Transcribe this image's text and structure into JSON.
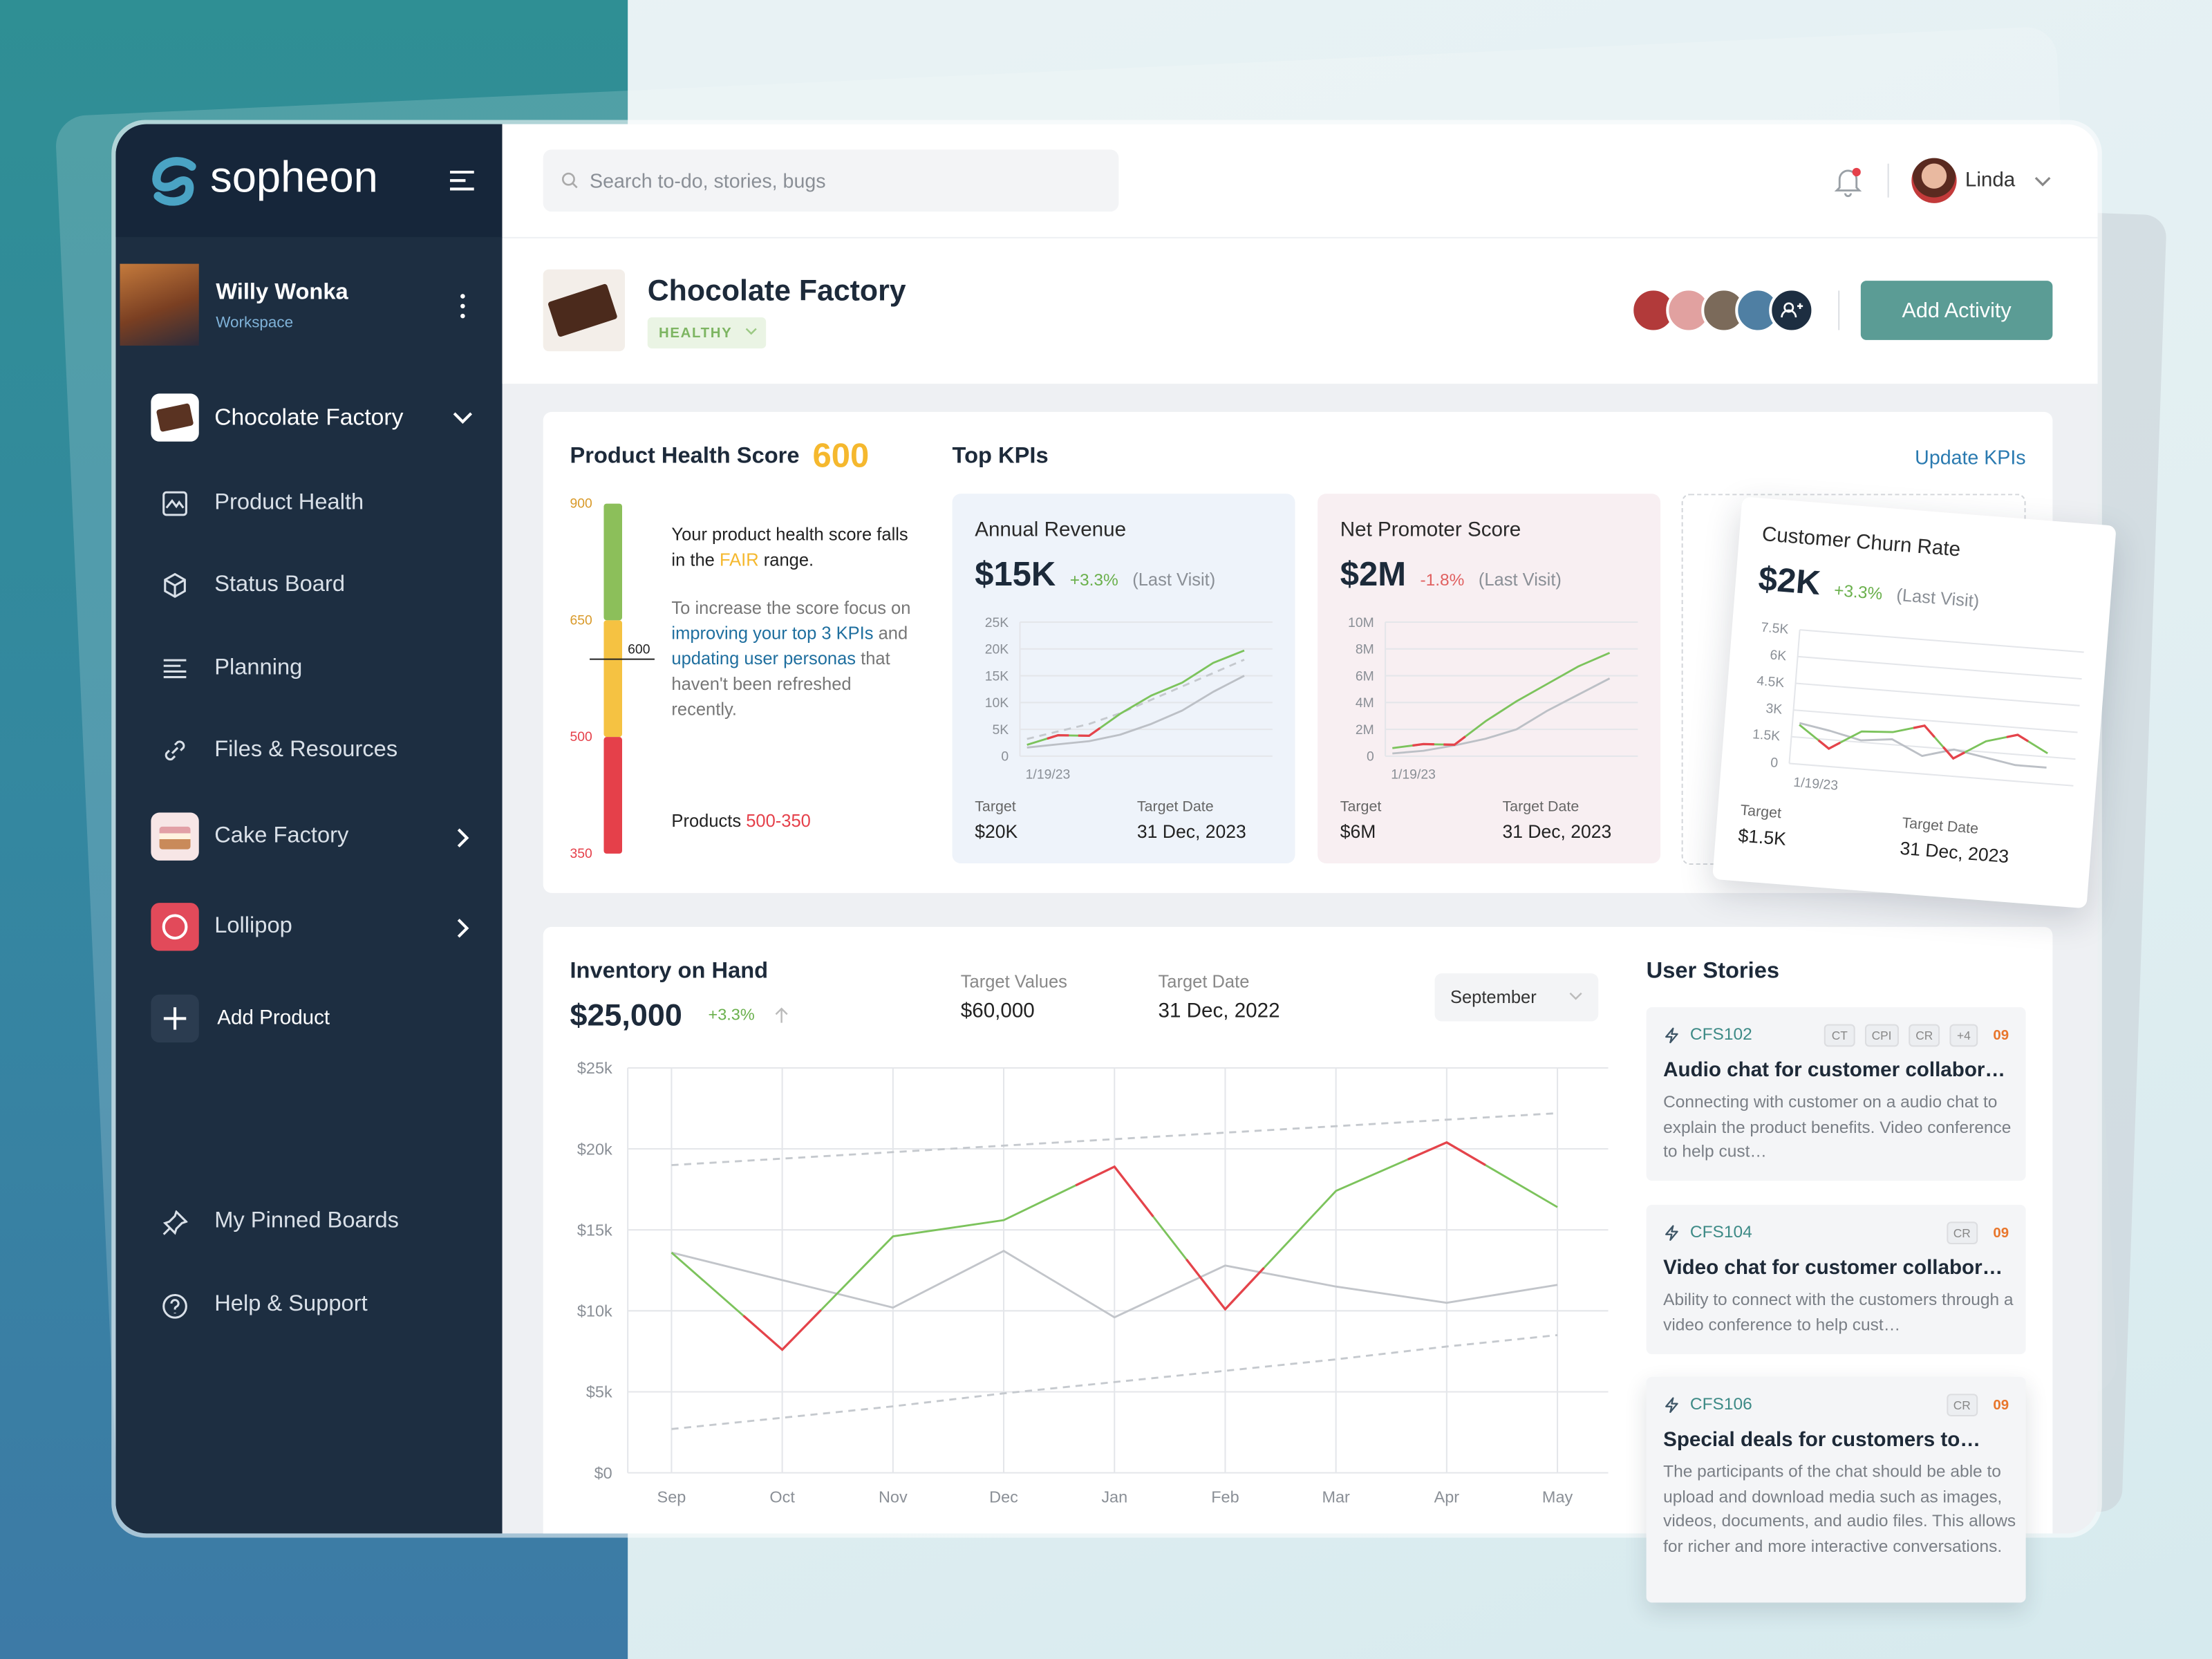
{
  "brand": "sopheon",
  "sidebar": {
    "user": {
      "name": "Willy Wonka",
      "role": "Workspace"
    },
    "current_product": "Chocolate Factory",
    "menu": [
      "Product Health",
      "Status Board",
      "Planning",
      "Files & Resources"
    ],
    "other_products": [
      "Cake Factory",
      "Lollipop"
    ],
    "add_product": "Add Product",
    "footer": [
      "My Pinned Boards",
      "Help & Support"
    ]
  },
  "topbar": {
    "search_placeholder": "Search to-do, stories, bugs",
    "user": "Linda"
  },
  "header": {
    "title": "Chocolate Factory",
    "status": "HEALTHY",
    "action": "Add Activity"
  },
  "health": {
    "title": "Product Health Score",
    "score": 600,
    "ticks": [
      900,
      650,
      500,
      350
    ],
    "colors": [
      "#8cbf5a",
      "#f5c242",
      "#e5404a"
    ],
    "summary": [
      "Your product health score falls in the ",
      "FAIR",
      " range."
    ],
    "advice": [
      "To increase the score focus on ",
      "improving your top 3 KPIs",
      " and ",
      "updating user personas",
      " that haven't been refreshed recently."
    ],
    "products": [
      "Products ",
      "500-350"
    ]
  },
  "kpis": {
    "title": "Top KPIs",
    "action": "Update KPIs",
    "cards": [
      {
        "title": "Annual Revenue",
        "value": "$15K",
        "change": "+3.3%",
        "change_color": "#6ab04c",
        "note": "(Last Visit)",
        "target_label": "Target",
        "target": "$20K",
        "date_label": "Target Date",
        "date": "31 Dec, 2023",
        "chart": {
          "type": "line",
          "categories": [
            "1/19/23",
            null,
            null,
            null,
            null,
            null,
            null,
            null
          ],
          "ylim": [
            0,
            25000
          ],
          "yticks": [
            0,
            {
              "value": 5000,
              "label": "5K"
            },
            {
              "value": 10000,
              "label": "10K"
            },
            {
              "value": 15000,
              "label": "15K"
            },
            {
              "value": 20000,
              "label": "20K"
            },
            {
              "value": 25000,
              "label": "25K"
            }
          ],
          "series": [
            {
              "color": "#7cc35c",
              "turn_color": "#e5434b",
              "values": [
                2100,
                3900,
                3800,
                7900,
                11300,
                13700,
                17400,
                19700
              ]
            },
            {
              "color": "#bcc0c6",
              "values": [
                1600,
                2200,
                2800,
                4000,
                6000,
                8500,
                12000,
                15000
              ]
            },
            {
              "color": "#c5c9ce",
              "dashed": true,
              "values": [
                3200,
                4600,
                6000,
                8000,
                10500,
                13000,
                15500,
                18000
              ]
            }
          ]
        }
      },
      {
        "title": "Net Promoter Score",
        "value": "$2M",
        "change": "-1.8%",
        "change_color": "#e06060",
        "note": "(Last Visit)",
        "target_label": "Target",
        "target": "$6M",
        "date_label": "Target Date",
        "date": "31 Dec, 2023",
        "chart": {
          "type": "line",
          "categories": [
            "1/19/23",
            null,
            null,
            null,
            null,
            null,
            null,
            null
          ],
          "ylim": [
            0,
            10000000
          ],
          "yticks": [
            0,
            {
              "value": 2000000,
              "label": "2M"
            },
            {
              "value": 4000000,
              "label": "4M"
            },
            {
              "value": 6000000,
              "label": "6M"
            },
            {
              "value": 8000000,
              "label": "8M"
            },
            {
              "value": 10000000,
              "label": "10M"
            }
          ],
          "series": [
            {
              "color": "#7cc35c",
              "turn_color": "#e5434b",
              "values": [
                600000,
                900000,
                850000,
                2600000,
                4100000,
                5400000,
                6700000,
                7700000
              ]
            },
            {
              "color": "#bcc0c6",
              "values": [
                200000,
                400000,
                800000,
                1300000,
                2000000,
                3400000,
                4600000,
                5800000
              ]
            }
          ]
        }
      },
      {
        "title": "Customer Churn Rate",
        "value": "$2K",
        "change": "+3.3%",
        "change_color": "#6ab04c",
        "note": "(Last Visit)",
        "target_label": "Target",
        "target": "$1.5K",
        "date_label": "Target Date",
        "date": "31 Dec, 2023",
        "chart": {
          "type": "line",
          "categories": [
            "1/19/23",
            null,
            null,
            null,
            null,
            null,
            null,
            null,
            null
          ],
          "ylim": [
            0,
            7500
          ],
          "yticks": [
            0,
            {
              "value": 1500,
              "label": "1.5K"
            },
            {
              "value": 3000,
              "label": "3K"
            },
            {
              "value": 4500,
              "label": "4.5K"
            },
            {
              "value": 6000,
              "label": "6K"
            },
            {
              "value": 7500,
              "label": "7.5K"
            }
          ],
          "series": [
            {
              "color": "#7cc35c",
              "turn_color": "#e5434b",
              "values": [
                2200,
                1000,
                2100,
                2200,
                2700,
                1000,
                2100,
                2600,
                1700
              ]
            },
            {
              "color": "#bcc0c6",
              "values": [
                2300,
                2000,
                1600,
                1800,
                1000,
                1500,
                1200,
                900,
                900
              ]
            }
          ]
        }
      }
    ]
  },
  "inventory": {
    "title": "Inventory on Hand",
    "value": "$25,000",
    "change": "+3.3%",
    "target_label": "Target Values",
    "target": "$60,000",
    "date_label": "Target Date",
    "date": "31 Dec, 2022",
    "period": "September",
    "chart": {
      "type": "line",
      "categories": [
        "Sep",
        "Oct",
        "Nov",
        "Dec",
        "Jan",
        "Feb",
        "Mar",
        "Apr",
        "May"
      ],
      "ylim": [
        0,
        25000
      ],
      "yticks": [
        {
          "value": 0,
          "label": "$0"
        },
        {
          "value": 5000,
          "label": "$5k"
        },
        {
          "value": 10000,
          "label": "$10k"
        },
        {
          "value": 15000,
          "label": "$15k"
        },
        {
          "value": 20000,
          "label": "$20k"
        },
        {
          "value": 25000,
          "label": "$25k"
        }
      ],
      "grid": true,
      "series": [
        {
          "color": "#7cc35c",
          "turn_color": "#e5434b",
          "values": [
            13600,
            7600,
            14600,
            15600,
            18900,
            10100,
            17400,
            20400,
            16400
          ]
        },
        {
          "color": "#c2c5ca",
          "values": [
            13600,
            11900,
            10200,
            13700,
            9600,
            12800,
            11500,
            10500,
            11600
          ]
        },
        {
          "color": "#c5c9ce",
          "dashed": true,
          "values": [
            19000,
            19400,
            19800,
            20200,
            20600,
            21000,
            21400,
            21800,
            22200
          ]
        },
        {
          "color": "#c5c9ce",
          "dashed": true,
          "values": [
            2700,
            3400,
            4100,
            4900,
            5600,
            6300,
            7000,
            7800,
            8500
          ]
        }
      ]
    }
  },
  "stories": {
    "title": "User Stories",
    "items": [
      {
        "id": "CFS102",
        "tags": [
          "CT",
          "CPI",
          "CR",
          "+4"
        ],
        "count": "09",
        "title": "Audio chat for customer collabor…",
        "description": "Connecting with customer on a audio chat to explain the product benefits. Video conference to help cust…"
      },
      {
        "id": "CFS104",
        "tags": [
          "CR"
        ],
        "count": "09",
        "title": "Video chat for customer collabor…",
        "description": "Ability to connect with the customers through a video conference to help cust…"
      },
      {
        "id": "CFS106",
        "tags": [
          "CR"
        ],
        "count": "09",
        "title": "Special deals for customers to…",
        "description": "The participants of the chat should be able to upload and download media such as images, videos, documents, and audio files. This allows for richer and more interactive conversations."
      }
    ]
  }
}
